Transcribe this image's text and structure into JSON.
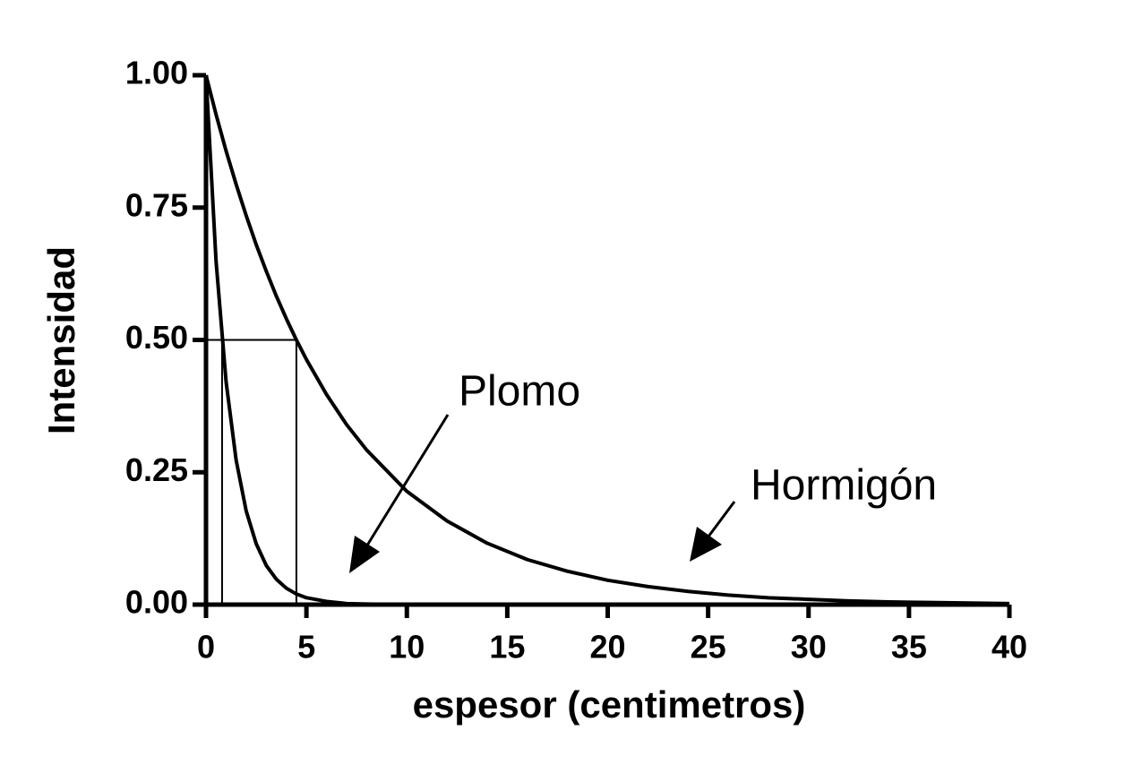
{
  "chart_data": {
    "type": "line",
    "xlabel": "espesor (centimetros)",
    "ylabel": "Intensidad",
    "x": [
      0,
      0.5,
      1,
      1.5,
      2,
      2.5,
      3,
      3.5,
      4,
      4.5,
      5,
      6,
      7,
      8,
      10,
      12,
      14,
      16,
      18,
      20,
      22,
      24,
      26,
      28,
      30,
      32,
      34,
      36,
      38,
      40
    ],
    "series": [
      {
        "name": "Plomo",
        "color": "#000000",
        "values": [
          1,
          0.649,
          0.421,
          0.273,
          0.177,
          0.115,
          0.074,
          0.048,
          0.031,
          0.02,
          0.013,
          0.006,
          0.002,
          0.001,
          0,
          0,
          0,
          0,
          0,
          0,
          0,
          0,
          0,
          0,
          0,
          0,
          0,
          0,
          0,
          0
        ]
      },
      {
        "name": "Hormigón",
        "color": "#000000",
        "values": [
          1,
          0.926,
          0.857,
          0.794,
          0.735,
          0.68,
          0.63,
          0.583,
          0.54,
          0.5,
          0.463,
          0.397,
          0.34,
          0.292,
          0.214,
          0.158,
          0.116,
          0.085,
          0.063,
          0.046,
          0.034,
          0.025,
          0.018,
          0.013,
          0.01,
          0.007,
          0.005,
          0.004,
          0.003,
          0.002
        ]
      }
    ],
    "reference_lines": [
      {
        "x": 0.8,
        "y": 0.5
      },
      {
        "x": 4.5,
        "y": 0.5
      }
    ],
    "xlim": [
      0,
      40
    ],
    "xticks": [
      0,
      5,
      10,
      15,
      20,
      25,
      30,
      35,
      40
    ],
    "ylim": [
      0,
      1
    ],
    "yticks": [
      {
        "value": 0,
        "label": "0.00"
      },
      {
        "value": 0.25,
        "label": "0.25"
      },
      {
        "value": 0.5,
        "label": "0.50"
      },
      {
        "value": 0.75,
        "label": "0.75"
      },
      {
        "value": 1,
        "label": "1.00"
      }
    ],
    "grid": false
  }
}
